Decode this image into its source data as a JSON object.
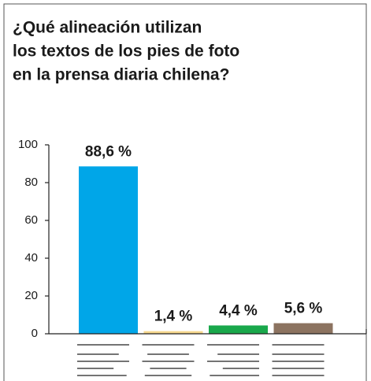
{
  "chart_data": {
    "type": "bar",
    "title": [
      "¿Qué alineación utilizan",
      "los textos de los pies de foto",
      "en la prensa diaria chilena?"
    ],
    "categories": [
      null,
      null,
      null,
      null
    ],
    "values": [
      88.6,
      1.4,
      4.4,
      5.6
    ],
    "value_labels": [
      "88,6 %",
      "1,4 %",
      "4,4 %",
      "5,6 %"
    ],
    "colors": [
      "#00a6e8",
      "#f7d88e",
      "#19a84b",
      "#8c7360"
    ],
    "ylim": [
      0,
      100
    ],
    "yticks": [
      0,
      20,
      40,
      60,
      80,
      100
    ],
    "grid": false
  }
}
